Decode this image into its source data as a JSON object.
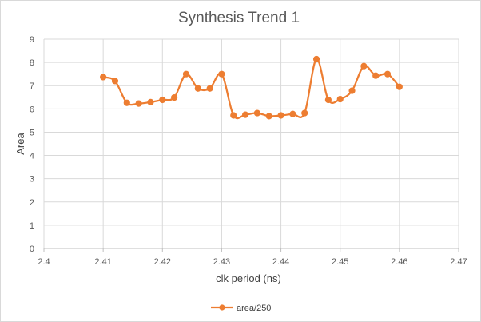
{
  "chart_data": {
    "type": "line",
    "title": "Synthesis Trend 1",
    "xlabel": "clk period (ns)",
    "ylabel": "Area",
    "xlim": [
      2.4,
      2.47
    ],
    "ylim": [
      0,
      9
    ],
    "x_ticks": [
      "2.4",
      "2.41",
      "2.42",
      "2.43",
      "2.44",
      "2.45",
      "2.46",
      "2.47"
    ],
    "y_ticks": [
      "0",
      "1",
      "2",
      "3",
      "4",
      "5",
      "6",
      "7",
      "8",
      "9"
    ],
    "grid": true,
    "smooth": true,
    "legend_position": "bottom",
    "series": [
      {
        "name": "area/250",
        "color": "#ED7D31",
        "x": [
          2.41,
          2.412,
          2.414,
          2.416,
          2.418,
          2.42,
          2.422,
          2.424,
          2.426,
          2.428,
          2.43,
          2.432,
          2.434,
          2.436,
          2.438,
          2.44,
          2.442,
          2.444,
          2.446,
          2.448,
          2.45,
          2.452,
          2.454,
          2.456,
          2.458,
          2.46
        ],
        "y": [
          7.37,
          7.2,
          6.26,
          6.23,
          6.29,
          6.39,
          6.49,
          7.5,
          6.88,
          6.88,
          7.5,
          5.72,
          5.75,
          5.82,
          5.69,
          5.72,
          5.78,
          5.82,
          8.14,
          6.39,
          6.42,
          6.78,
          7.84,
          7.43,
          7.5,
          6.95
        ]
      }
    ]
  }
}
